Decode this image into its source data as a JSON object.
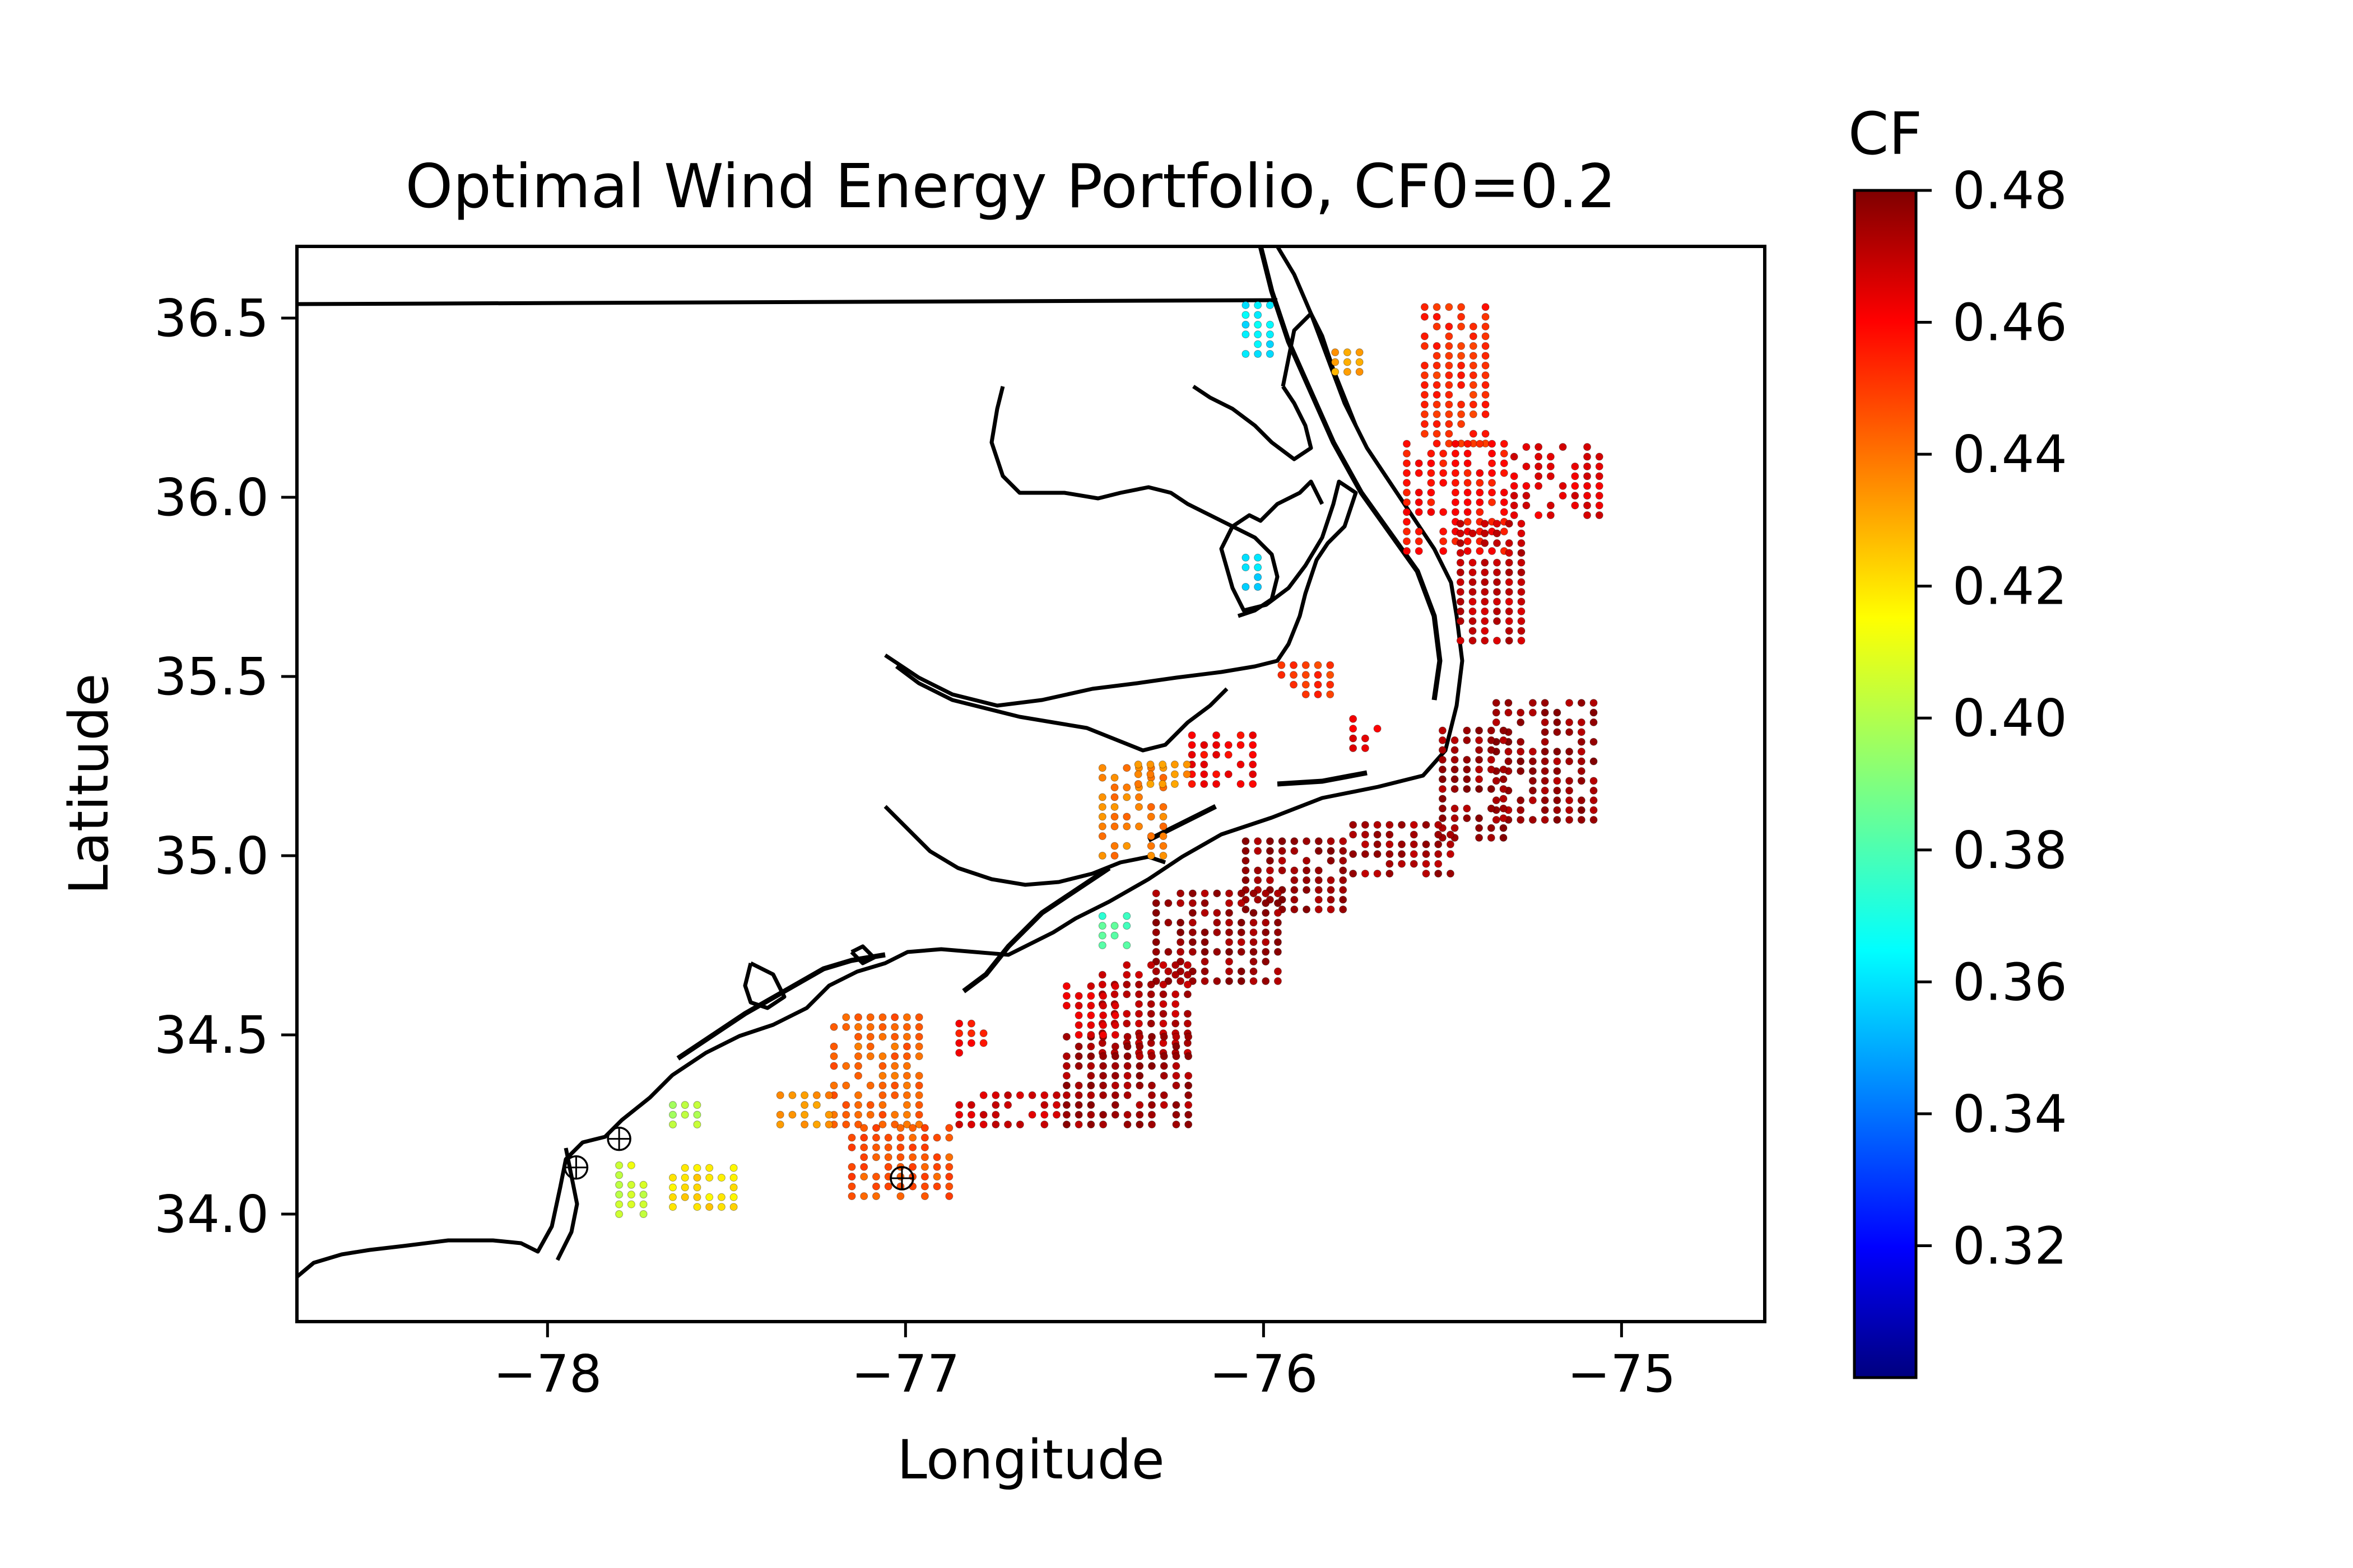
{
  "chart_data": {
    "type": "scatter",
    "title": "Optimal Wind Energy Portfolio, CF0=0.2",
    "xlabel": "Longitude",
    "ylabel": "Latitude",
    "xlim": [
      -78.7,
      -74.6
    ],
    "ylim": [
      33.7,
      36.7
    ],
    "xticks": [
      -78,
      -77,
      -76,
      -75
    ],
    "xtick_labels": [
      "−78",
      "−77",
      "−76",
      "−75"
    ],
    "yticks": [
      34.0,
      34.5,
      35.0,
      35.5,
      36.0,
      36.5
    ],
    "ytick_labels": [
      "34.0",
      "34.5",
      "35.0",
      "35.5",
      "36.0",
      "36.5"
    ],
    "grid": false,
    "colormap": "jet",
    "colorbar": {
      "label": "CF",
      "range": [
        0.3,
        0.48
      ],
      "ticks": [
        0.32,
        0.34,
        0.36,
        0.38,
        0.4,
        0.42,
        0.44,
        0.46,
        0.48
      ],
      "tick_labels": [
        "0.32",
        "0.34",
        "0.36",
        "0.38",
        "0.40",
        "0.42",
        "0.44",
        "0.46",
        "0.48"
      ]
    },
    "clusters": [
      {
        "lon": [
          -75.55,
          -75.35
        ],
        "lat": [
          36.15,
          36.55
        ],
        "cf": 0.45
      },
      {
        "lon": [
          -75.6,
          -75.3
        ],
        "lat": [
          35.85,
          36.15
        ],
        "cf": 0.455
      },
      {
        "lon": [
          -75.3,
          -75.05
        ],
        "lat": [
          35.95,
          36.15
        ],
        "cf": 0.462
      },
      {
        "lon": [
          -75.45,
          -75.25
        ],
        "lat": [
          35.6,
          35.95
        ],
        "cf": 0.468
      },
      {
        "lon": [
          -75.35,
          -75.05
        ],
        "lat": [
          35.1,
          35.45
        ],
        "cf": 0.475
      },
      {
        "lon": [
          -75.5,
          -75.3
        ],
        "lat": [
          35.05,
          35.35
        ],
        "cf": 0.475
      },
      {
        "lon": [
          -75.75,
          -75.45
        ],
        "lat": [
          34.95,
          35.1
        ],
        "cf": 0.473
      },
      {
        "lon": [
          -76.05,
          -75.75
        ],
        "lat": [
          34.85,
          35.05
        ],
        "cf": 0.475
      },
      {
        "lon": [
          -76.3,
          -75.95
        ],
        "lat": [
          34.65,
          34.9
        ],
        "cf": 0.475
      },
      {
        "lon": [
          -76.45,
          -76.2
        ],
        "lat": [
          34.45,
          34.7
        ],
        "cf": 0.47
      },
      {
        "lon": [
          -76.55,
          -76.2
        ],
        "lat": [
          34.25,
          34.5
        ],
        "cf": 0.474
      },
      {
        "lon": [
          -76.85,
          -76.55
        ],
        "lat": [
          34.25,
          34.35
        ],
        "cf": 0.465
      },
      {
        "lon": [
          -76.55,
          -76.4
        ],
        "lat": [
          34.5,
          34.65
        ],
        "cf": 0.462
      },
      {
        "lon": [
          -76.2,
          -76.0
        ],
        "lat": [
          35.2,
          35.35
        ],
        "cf": 0.458
      },
      {
        "lon": [
          -75.95,
          -75.8
        ],
        "lat": [
          35.45,
          35.55
        ],
        "cf": 0.448
      },
      {
        "lon": [
          -75.75,
          -75.65
        ],
        "lat": [
          35.3,
          35.4
        ],
        "cf": 0.462
      },
      {
        "lon": [
          -76.45,
          -76.25
        ],
        "lat": [
          35.0,
          35.25
        ],
        "cf": 0.435
      },
      {
        "lon": [
          -76.35,
          -76.2
        ],
        "lat": [
          35.2,
          35.28
        ],
        "cf": 0.432
      },
      {
        "lon": [
          -76.85,
          -76.75
        ],
        "lat": [
          34.45,
          34.55
        ],
        "cf": 0.455
      },
      {
        "lon": [
          -77.2,
          -76.95
        ],
        "lat": [
          34.25,
          34.55
        ],
        "cf": 0.44
      },
      {
        "lon": [
          -77.15,
          -76.85
        ],
        "lat": [
          34.05,
          34.25
        ],
        "cf": 0.443
      },
      {
        "lon": [
          -77.35,
          -77.2
        ],
        "lat": [
          34.25,
          34.35
        ],
        "cf": 0.432
      },
      {
        "lon": [
          -77.65,
          -77.45
        ],
        "lat": [
          34.02,
          34.15
        ],
        "cf": 0.418
      },
      {
        "lon": [
          -77.8,
          -77.7
        ],
        "lat": [
          34.0,
          34.15
        ],
        "cf": 0.405
      },
      {
        "lon": [
          -77.65,
          -77.55
        ],
        "lat": [
          34.25,
          34.32
        ],
        "cf": 0.4
      },
      {
        "lon": [
          -75.8,
          -75.7
        ],
        "lat": [
          36.35,
          36.43
        ],
        "cf": 0.43
      },
      {
        "lon": [
          -76.05,
          -76.0
        ],
        "lat": [
          35.75,
          35.85
        ],
        "cf": 0.36
      },
      {
        "lon": [
          -76.05,
          -75.95
        ],
        "lat": [
          36.4,
          36.55
        ],
        "cf": 0.365
      },
      {
        "lon": [
          -76.45,
          -76.35
        ],
        "lat": [
          34.75,
          34.85
        ],
        "cf": 0.38
      }
    ],
    "marked_points": [
      {
        "lon": -77.92,
        "lat": 34.13
      },
      {
        "lon": -77.8,
        "lat": 34.21
      },
      {
        "lon": -77.01,
        "lat": 34.1
      }
    ]
  }
}
